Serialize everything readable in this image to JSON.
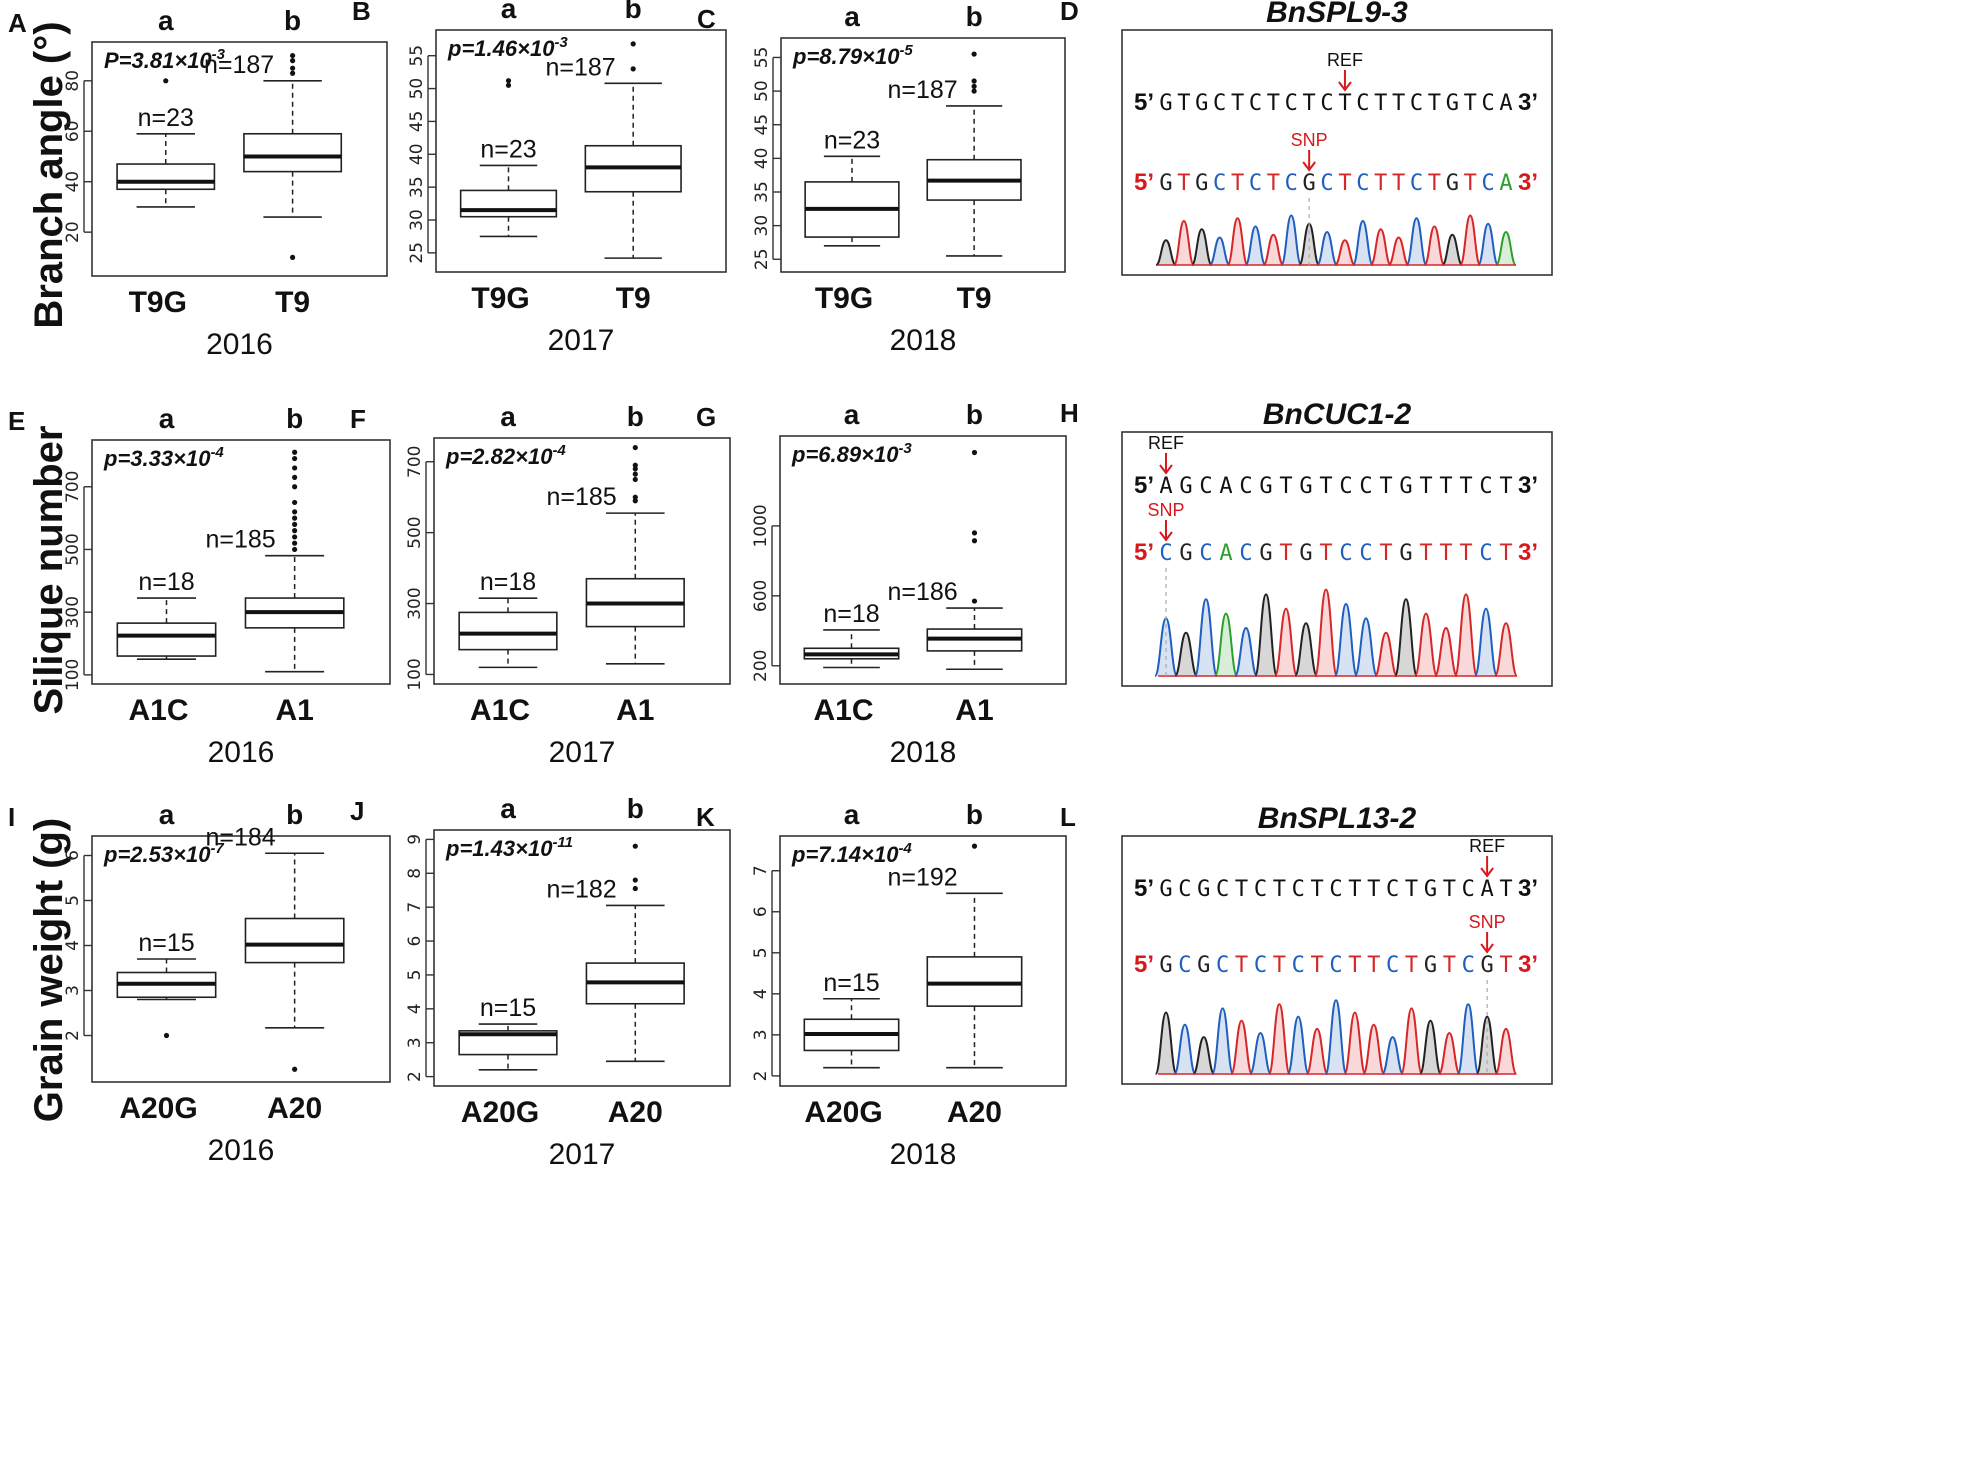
{
  "figure": {
    "colors": {
      "ref_text": "#111111",
      "snp_text": "#d7191c",
      "base_A": "#2ca02c",
      "base_C": "#1f5fbf",
      "base_G": "#222222",
      "base_T": "#d62728",
      "arrow": "#d7191c"
    }
  },
  "rows": [
    {
      "ylabel": "Branch angle (°)"
    },
    {
      "ylabel": "Silique number"
    },
    {
      "ylabel": "Grain weight (g)"
    }
  ],
  "chart_data": [
    {
      "panel": "A",
      "type": "box",
      "year": "2016",
      "p_value": "P=3.81×10",
      "p_exp": "-3",
      "ylim": [
        5,
        93
      ],
      "yticks": [
        20,
        40,
        60,
        80
      ],
      "groups": [
        {
          "name": "T9G",
          "sig": "a",
          "n_label": "n=23",
          "whisker_low": 30,
          "q1": 37,
          "median": 40,
          "q3": 47,
          "whisker_high": 59,
          "outliers": [
            80
          ]
        },
        {
          "name": "T9",
          "sig": "b",
          "n_label": "n=187",
          "whisker_low": 26,
          "q1": 44,
          "median": 50,
          "q3": 59,
          "whisker_high": 80,
          "outliers": [
            10,
            83,
            85,
            88,
            90
          ]
        }
      ]
    },
    {
      "panel": "B",
      "type": "box",
      "year": "2017",
      "p_value": "p=1.46×10",
      "p_exp": "-3",
      "ylim": [
        23,
        58
      ],
      "yticks": [
        25,
        30,
        35,
        40,
        45,
        50,
        55
      ],
      "groups": [
        {
          "name": "T9G",
          "sig": "a",
          "n_label": "n=23",
          "whisker_low": 27.5,
          "q1": 30.5,
          "median": 31.5,
          "q3": 34.5,
          "whisker_high": 38.3,
          "outliers": [
            50.5,
            51.2
          ]
        },
        {
          "name": "T9",
          "sig": "b",
          "n_label": "n=187",
          "whisker_low": 24.2,
          "q1": 34.3,
          "median": 38,
          "q3": 41.3,
          "whisker_high": 50.8,
          "outliers": [
            53,
            56.8
          ]
        }
      ]
    },
    {
      "panel": "C",
      "type": "box",
      "year": "2018",
      "p_value": "p=8.79×10",
      "p_exp": "-5",
      "ylim": [
        24,
        57
      ],
      "yticks": [
        25,
        30,
        35,
        40,
        45,
        50,
        55
      ],
      "groups": [
        {
          "name": "T9G",
          "sig": "a",
          "n_label": "n=23",
          "whisker_low": 27,
          "q1": 28.3,
          "median": 32.5,
          "q3": 36.5,
          "whisker_high": 40.3,
          "outliers": []
        },
        {
          "name": "T9",
          "sig": "b",
          "n_label": "n=187",
          "whisker_low": 25.5,
          "q1": 33.8,
          "median": 36.7,
          "q3": 39.8,
          "whisker_high": 47.8,
          "outliers": [
            50,
            50.7,
            51.5,
            55.5
          ]
        }
      ]
    },
    {
      "panel": "E",
      "type": "box",
      "year": "2016",
      "p_value": "p=3.33×10",
      "p_exp": "-4",
      "ylim": [
        90,
        830
      ],
      "yticks": [
        100,
        300,
        500,
        700
      ],
      "groups": [
        {
          "name": "A1C",
          "sig": "a",
          "n_label": "n=18",
          "whisker_low": 150,
          "q1": 160,
          "median": 225,
          "q3": 265,
          "whisker_high": 345,
          "outliers": []
        },
        {
          "name": "A1",
          "sig": "b",
          "n_label": "n=185",
          "whisker_low": 110,
          "q1": 250,
          "median": 300,
          "q3": 345,
          "whisker_high": 480,
          "outliers": [
            500,
            520,
            540,
            560,
            580,
            600,
            620,
            650,
            700,
            730,
            760,
            790,
            810
          ]
        }
      ]
    },
    {
      "panel": "F",
      "type": "box",
      "year": "2017",
      "p_value": "p=2.82×10",
      "p_exp": "-4",
      "ylim": [
        90,
        750
      ],
      "yticks": [
        100,
        300,
        500,
        700
      ],
      "groups": [
        {
          "name": "A1C",
          "sig": "a",
          "n_label": "n=18",
          "whisker_low": 120,
          "q1": 170,
          "median": 215,
          "q3": 275,
          "whisker_high": 315,
          "outliers": []
        },
        {
          "name": "A1",
          "sig": "b",
          "n_label": "n=185",
          "whisker_low": 130,
          "q1": 235,
          "median": 300,
          "q3": 370,
          "whisker_high": 555,
          "outliers": [
            590,
            600,
            650,
            665,
            680,
            690,
            740
          ]
        }
      ]
    },
    {
      "panel": "G",
      "type": "box",
      "year": "2018",
      "p_value": "p=6.89×10",
      "p_exp": "-3",
      "ylim": [
        130,
        1480
      ],
      "yticks": [
        200,
        600,
        1000
      ],
      "groups": [
        {
          "name": "A1C",
          "sig": "a",
          "n_label": "n=18",
          "whisker_low": 190,
          "q1": 240,
          "median": 265,
          "q3": 300,
          "whisker_high": 405,
          "outliers": []
        },
        {
          "name": "A1",
          "sig": "b",
          "n_label": "n=186",
          "whisker_low": 180,
          "q1": 285,
          "median": 355,
          "q3": 410,
          "whisker_high": 530,
          "outliers": [
            570,
            915,
            960,
            1420
          ]
        }
      ]
    },
    {
      "panel": "I",
      "type": "box",
      "year": "2016",
      "p_value": "p=2.53×10",
      "p_exp": "-7",
      "ylim": [
        1.1,
        6.3
      ],
      "yticks": [
        2,
        3,
        4,
        5,
        6
      ],
      "groups": [
        {
          "name": "A20G",
          "sig": "a",
          "n_label": "n=15",
          "whisker_low": 2.8,
          "q1": 2.85,
          "median": 3.15,
          "q3": 3.4,
          "whisker_high": 3.7,
          "outliers": [
            2.0
          ]
        },
        {
          "name": "A20",
          "sig": "b",
          "n_label": "n=184",
          "whisker_low": 2.17,
          "q1": 3.62,
          "median": 4.02,
          "q3": 4.6,
          "whisker_high": 6.05,
          "outliers": [
            1.25
          ]
        }
      ]
    },
    {
      "panel": "J",
      "type": "box",
      "year": "2017",
      "p_value": "p=1.43×10",
      "p_exp": "-11",
      "ylim": [
        1.9,
        9.1
      ],
      "yticks": [
        2,
        3,
        4,
        5,
        6,
        7,
        8,
        9
      ],
      "groups": [
        {
          "name": "A20G",
          "sig": "a",
          "n_label": "n=15",
          "whisker_low": 2.2,
          "q1": 2.65,
          "median": 3.25,
          "q3": 3.35,
          "whisker_high": 3.55,
          "outliers": []
        },
        {
          "name": "A20",
          "sig": "b",
          "n_label": "n=182",
          "whisker_low": 2.45,
          "q1": 4.15,
          "median": 4.78,
          "q3": 5.35,
          "whisker_high": 7.05,
          "outliers": [
            7.55,
            7.8,
            8.8
          ]
        }
      ]
    },
    {
      "panel": "K",
      "type": "box",
      "year": "2018",
      "p_value": "p=7.14×10",
      "p_exp": "-4",
      "ylim": [
        1.9,
        7.7
      ],
      "yticks": [
        2,
        3,
        4,
        5,
        6,
        7
      ],
      "groups": [
        {
          "name": "A20G",
          "sig": "a",
          "n_label": "n=15",
          "whisker_low": 2.2,
          "q1": 2.62,
          "median": 3.02,
          "q3": 3.38,
          "whisker_high": 3.88,
          "outliers": []
        },
        {
          "name": "A20",
          "sig": "b",
          "n_label": "n=192",
          "whisker_low": 2.2,
          "q1": 3.7,
          "median": 4.25,
          "q3": 4.9,
          "whisker_high": 6.45,
          "outliers": [
            7.6
          ]
        }
      ]
    }
  ],
  "sequences": [
    {
      "panel": "D",
      "title": "BnSPL9-3",
      "marker_top": "REF",
      "marker_bottom": "SNP",
      "five_prime": "5’",
      "three_prime": "3’",
      "ref_seq": "G T G C T C T C T C T C T T C T G T C A",
      "snp_seq": "G T G C T C T C G C T C T T C T G T C A"
    },
    {
      "panel": "H",
      "title": "BnCUC1-2",
      "marker_top": "REF",
      "marker_bottom": "SNP",
      "five_prime": "5’",
      "three_prime": "3’",
      "ref_seq": "A G C A C G T G T C C T G T T T C T",
      "snp_seq": "C G C A C G T G T C C T G T T T C T"
    },
    {
      "panel": "L",
      "title": "BnSPL13-2",
      "marker_top": "REF",
      "marker_bottom": "SNP",
      "five_prime": "5’",
      "three_prime": "3’",
      "ref_seq": "G C G C T C T C T C T T C T G T C A T",
      "snp_seq": "G C G C T C T C T C T T C T G T C G T"
    }
  ]
}
